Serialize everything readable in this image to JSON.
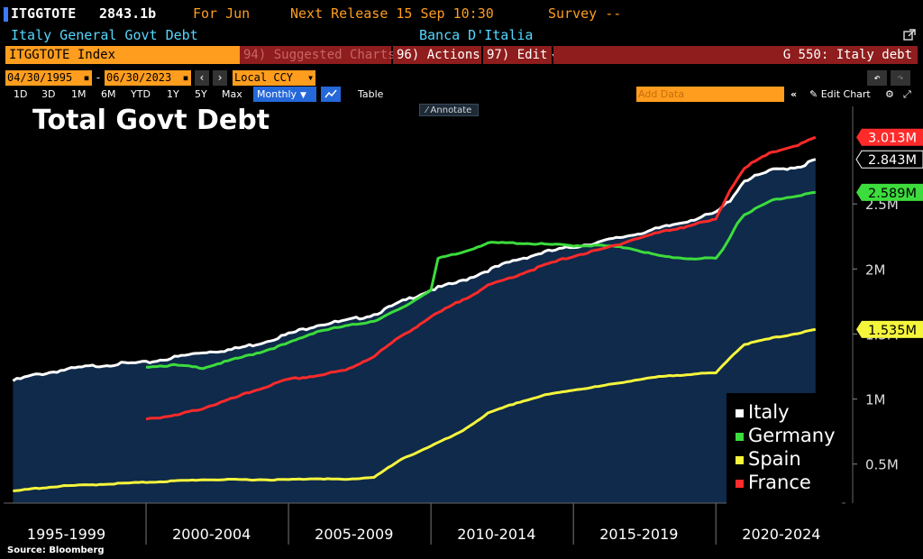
{
  "header": {
    "ticker": "ITGGTOTE",
    "value": "2843.1b",
    "for_label": "For Jun",
    "next_release": "Next Release 15 Sep 10:30",
    "survey": "Survey --",
    "description": "Italy General Govt Debt",
    "source_name": "Banca D'Italia"
  },
  "toolbar": {
    "security": "ITGGTOTE Index",
    "suggested": "94) Suggested Charts",
    "actions": "96) Actions",
    "edit": "97) Edit",
    "function": "G 550: Italy debt",
    "start_date": "04/30/1995",
    "end_date": "06/30/2023",
    "currency": "Local CCY",
    "periods": [
      "1D",
      "3D",
      "1M",
      "6M",
      "YTD",
      "1Y",
      "5Y",
      "Max"
    ],
    "frequency": "Monthly",
    "table_label": "Table",
    "add_data": "Add Data",
    "edit_chart": "Edit Chart",
    "annotate": "Annotate"
  },
  "colors": {
    "amber": "#ff9d1e",
    "cyan": "#55d7ff",
    "toolbar_red": "#8f1d1d",
    "chart_fill": "#0f2a4a",
    "italy": "#ffffff",
    "germany": "#3cdc3c",
    "spain": "#f5f53c",
    "france": "#ff2a2a"
  },
  "source": "Source: Bloomberg",
  "chart_data": {
    "type": "line",
    "title": "Total Govt Debt",
    "x_axis_labels": [
      "1995-1999",
      "2000-2004",
      "2005-2009",
      "2010-2014",
      "2015-2019",
      "2020-2024"
    ],
    "y_ticks": [
      "0.5M",
      "1M",
      "1.5M",
      "2M",
      "2.5M"
    ],
    "ylim": [
      0.2,
      3.25
    ],
    "grid": false,
    "legend_position": "bottom-right",
    "series": [
      {
        "name": "Italy",
        "color": "#ffffff",
        "end_label": "2.843M",
        "points": [
          [
            1995.33,
            1.14
          ],
          [
            1996,
            1.18
          ],
          [
            1997,
            1.22
          ],
          [
            1998,
            1.25
          ],
          [
            1999,
            1.27
          ],
          [
            2000,
            1.28
          ],
          [
            2001,
            1.32
          ],
          [
            2002,
            1.36
          ],
          [
            2003,
            1.38
          ],
          [
            2004,
            1.43
          ],
          [
            2005,
            1.5
          ],
          [
            2006,
            1.57
          ],
          [
            2007,
            1.6
          ],
          [
            2008,
            1.65
          ],
          [
            2009,
            1.75
          ],
          [
            2010,
            1.84
          ],
          [
            2011,
            1.9
          ],
          [
            2012,
            1.99
          ],
          [
            2013,
            2.07
          ],
          [
            2014,
            2.13
          ],
          [
            2015,
            2.17
          ],
          [
            2016,
            2.21
          ],
          [
            2017,
            2.26
          ],
          [
            2018,
            2.31
          ],
          [
            2019,
            2.37
          ],
          [
            2020,
            2.43
          ],
          [
            2020.5,
            2.53
          ],
          [
            2021,
            2.68
          ],
          [
            2022,
            2.76
          ],
          [
            2023,
            2.79
          ],
          [
            2023.5,
            2.843
          ]
        ]
      },
      {
        "name": "Germany",
        "color": "#3cdc3c",
        "end_label": "2.589M",
        "points": [
          [
            2000,
            1.25
          ],
          [
            2001,
            1.26
          ],
          [
            2002,
            1.24
          ],
          [
            2003,
            1.3
          ],
          [
            2004,
            1.36
          ],
          [
            2005,
            1.43
          ],
          [
            2006,
            1.52
          ],
          [
            2007,
            1.56
          ],
          [
            2008,
            1.6
          ],
          [
            2009,
            1.7
          ],
          [
            2010,
            1.84
          ],
          [
            2010.25,
            2.08
          ],
          [
            2011,
            2.12
          ],
          [
            2012,
            2.2
          ],
          [
            2013,
            2.2
          ],
          [
            2014,
            2.19
          ],
          [
            2015,
            2.18
          ],
          [
            2016,
            2.18
          ],
          [
            2017,
            2.16
          ],
          [
            2018,
            2.1
          ],
          [
            2019,
            2.08
          ],
          [
            2020,
            2.08
          ],
          [
            2020.25,
            2.15
          ],
          [
            2020.75,
            2.35
          ],
          [
            2021,
            2.42
          ],
          [
            2022,
            2.53
          ],
          [
            2023,
            2.57
          ],
          [
            2023.5,
            2.589
          ]
        ]
      },
      {
        "name": "Spain",
        "color": "#f5f53c",
        "end_label": "1.535M",
        "points": [
          [
            1995.33,
            0.29
          ],
          [
            1996,
            0.31
          ],
          [
            1997,
            0.33
          ],
          [
            1998,
            0.34
          ],
          [
            1999,
            0.35
          ],
          [
            2000,
            0.36
          ],
          [
            2001,
            0.37
          ],
          [
            2002,
            0.38
          ],
          [
            2003,
            0.38
          ],
          [
            2004,
            0.38
          ],
          [
            2005,
            0.38
          ],
          [
            2006,
            0.39
          ],
          [
            2007,
            0.38
          ],
          [
            2008,
            0.4
          ],
          [
            2009,
            0.54
          ],
          [
            2010,
            0.64
          ],
          [
            2011,
            0.74
          ],
          [
            2012,
            0.89
          ],
          [
            2013,
            0.97
          ],
          [
            2014,
            1.03
          ],
          [
            2015,
            1.07
          ],
          [
            2016,
            1.1
          ],
          [
            2017,
            1.14
          ],
          [
            2018,
            1.17
          ],
          [
            2019,
            1.19
          ],
          [
            2020,
            1.2
          ],
          [
            2020.5,
            1.32
          ],
          [
            2021,
            1.42
          ],
          [
            2022,
            1.47
          ],
          [
            2023,
            1.51
          ],
          [
            2023.5,
            1.535
          ]
        ]
      },
      {
        "name": "France",
        "color": "#ff2a2a",
        "end_label": "3.013M",
        "points": [
          [
            2000,
            0.85
          ],
          [
            2001,
            0.87
          ],
          [
            2002,
            0.93
          ],
          [
            2003,
            1.0
          ],
          [
            2004,
            1.08
          ],
          [
            2005,
            1.15
          ],
          [
            2006,
            1.18
          ],
          [
            2007,
            1.22
          ],
          [
            2008,
            1.33
          ],
          [
            2009,
            1.49
          ],
          [
            2010,
            1.63
          ],
          [
            2011,
            1.75
          ],
          [
            2012,
            1.87
          ],
          [
            2013,
            1.95
          ],
          [
            2014,
            2.03
          ],
          [
            2015,
            2.1
          ],
          [
            2016,
            2.15
          ],
          [
            2017,
            2.22
          ],
          [
            2018,
            2.28
          ],
          [
            2019,
            2.33
          ],
          [
            2020,
            2.38
          ],
          [
            2020.5,
            2.61
          ],
          [
            2021,
            2.78
          ],
          [
            2022,
            2.9
          ],
          [
            2023,
            2.96
          ],
          [
            2023.5,
            3.013
          ]
        ]
      }
    ]
  }
}
